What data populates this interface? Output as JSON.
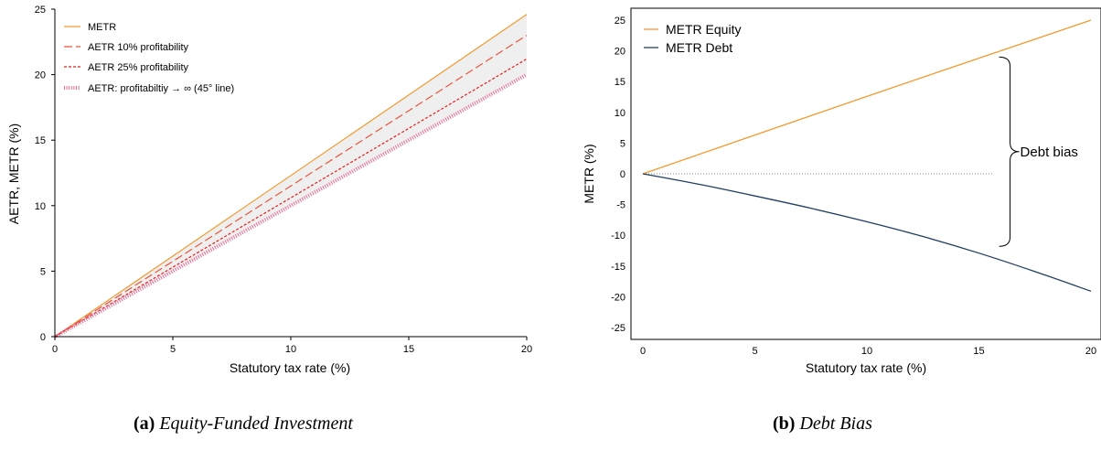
{
  "chart_data": [
    {
      "type": "line",
      "xlabel": "Statutory tax rate (%)",
      "ylabel": "AETR, METR (%)",
      "xlim": [
        0,
        20
      ],
      "ylim": [
        0,
        25
      ],
      "x_ticks": [
        "0",
        "5",
        "10",
        "15",
        "20"
      ],
      "y_ticks": [
        "0",
        "5",
        "10",
        "15",
        "20",
        "25"
      ],
      "legend_position": "top-left",
      "series": [
        {
          "name": "METR",
          "style": "solid",
          "color": "#f39a2e",
          "x": [
            0,
            20
          ],
          "y": [
            0,
            24.6
          ]
        },
        {
          "name": "AETR 10% profitability",
          "style": "long-dash",
          "color": "#e8553a",
          "x": [
            0,
            20
          ],
          "y": [
            0,
            23.0
          ]
        },
        {
          "name": "AETR 25% profitability",
          "style": "short-dash",
          "color": "#e0201c",
          "x": [
            0,
            20
          ],
          "y": [
            0,
            21.2
          ]
        },
        {
          "name": "AETR: profitabiltiy → ∞ (45° line)",
          "style": "dotted",
          "color": "#e86a96",
          "x": [
            0,
            20
          ],
          "y": [
            0,
            20.0
          ]
        }
      ],
      "shaded_region": {
        "between": [
          "METR",
          "AETR: profitabiltiy → ∞ (45° line)"
        ],
        "color": "#efefef"
      },
      "caption_label": "(a)",
      "caption_text": "Equity-Funded Investment"
    },
    {
      "type": "line",
      "xlabel": "Statutory tax rate (%)",
      "ylabel": "METR (%)",
      "xlim": [
        0,
        20
      ],
      "ylim": [
        -25,
        25
      ],
      "x_ticks": [
        "0",
        "5",
        "10",
        "15",
        "20"
      ],
      "y_ticks": [
        "25",
        "20",
        "15",
        "10",
        "5",
        "0",
        "-5",
        "-10",
        "-15",
        "-20",
        "-25"
      ],
      "legend_position": "top-left",
      "series": [
        {
          "name": "METR Equity",
          "style": "solid",
          "color": "#f39a2e",
          "x": [
            0,
            5,
            10,
            15,
            20
          ],
          "y": [
            0,
            6.3,
            12.6,
            18.8,
            25.0
          ]
        },
        {
          "name": "METR Debt",
          "style": "solid",
          "color": "#1f3e63",
          "x": [
            0,
            2.5,
            5,
            7.5,
            10,
            12.5,
            15,
            17.5,
            20
          ],
          "y": [
            0,
            -1.7,
            -3.6,
            -5.6,
            -7.8,
            -10.2,
            -12.9,
            -15.9,
            -19.1
          ]
        }
      ],
      "reference_line": {
        "y": 0,
        "x": [
          0,
          15.6
        ],
        "style": "dotted"
      },
      "annotation": {
        "text": "Debt bias",
        "bracket_y": [
          19.0,
          -11.8
        ],
        "bracket_x": 15.9
      },
      "caption_label": "(b)",
      "caption_text": "Debt Bias"
    }
  ]
}
